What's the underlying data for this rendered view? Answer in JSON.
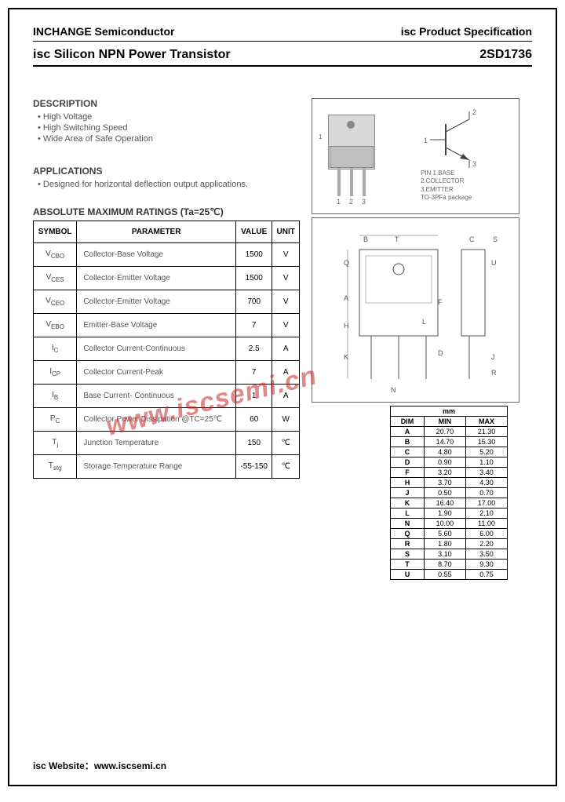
{
  "header": {
    "company": "INCHANGE Semiconductor",
    "spec": "isc Product Specification"
  },
  "title": {
    "product": "isc Silicon NPN Power Transistor",
    "partnum": "2SD1736"
  },
  "description": {
    "title": "DESCRIPTION",
    "bullets": [
      "High Voltage",
      "High Switching Speed",
      "Wide Area of Safe Operation"
    ]
  },
  "applications": {
    "title": "APPLICATIONS",
    "bullets": [
      "Designed for horizontal deflection output applications."
    ]
  },
  "ratings": {
    "title": "ABSOLUTE MAXIMUM RATINGS (Ta=25℃)",
    "headers": [
      "SYMBOL",
      "PARAMETER",
      "VALUE",
      "UNIT"
    ],
    "rows": [
      {
        "sym": "V",
        "sub": "CBO",
        "param": "Collector-Base Voltage",
        "value": "1500",
        "unit": "V"
      },
      {
        "sym": "V",
        "sub": "CES",
        "param": "Collector-Emitter Voltage",
        "value": "1500",
        "unit": "V"
      },
      {
        "sym": "V",
        "sub": "CEO",
        "param": "Collector-Emitter Voltage",
        "value": "700",
        "unit": "V"
      },
      {
        "sym": "V",
        "sub": "EBO",
        "param": "Emitter-Base Voltage",
        "value": "7",
        "unit": "V"
      },
      {
        "sym": "I",
        "sub": "C",
        "param": "Collector Current-Continuous",
        "value": "2.5",
        "unit": "A"
      },
      {
        "sym": "I",
        "sub": "CP",
        "param": "Collector Current-Peak",
        "value": "7",
        "unit": "A"
      },
      {
        "sym": "I",
        "sub": "B",
        "param": "Base Current- Continuous",
        "value": "1",
        "unit": "A"
      },
      {
        "sym": "P",
        "sub": "C",
        "param": "Collector Power Dissipation @TC=25℃",
        "value": "60",
        "unit": "W"
      },
      {
        "sym": "T",
        "sub": "j",
        "param": "Junction Temperature",
        "value": "150",
        "unit": "℃"
      },
      {
        "sym": "T",
        "sub": "stg",
        "param": "Storage Temperature Range",
        "value": "-55-150",
        "unit": "℃"
      }
    ]
  },
  "package": {
    "pins": [
      "1",
      "2",
      "3"
    ],
    "pinlabels": "PIN 1.BASE\n2.COLLECTOR\n3.EMITTER\nTO-3PFa package",
    "symbol_pins": {
      "p1": "1",
      "p2": "2",
      "p3": "3"
    }
  },
  "dimensions": {
    "header_unit": "mm",
    "headers": [
      "DIM",
      "MIN",
      "MAX"
    ],
    "rows": [
      [
        "A",
        "20.70",
        "21.30"
      ],
      [
        "B",
        "14.70",
        "15.30"
      ],
      [
        "C",
        "4.80",
        "5.20"
      ],
      [
        "D",
        "0.90",
        "1.10"
      ],
      [
        "F",
        "3.20",
        "3.40"
      ],
      [
        "H",
        "3.70",
        "4.30"
      ],
      [
        "J",
        "0.50",
        "0.70"
      ],
      [
        "K",
        "16.40",
        "17.00"
      ],
      [
        "L",
        "1.90",
        "2.10"
      ],
      [
        "N",
        "10.00",
        "11.00"
      ],
      [
        "Q",
        "5.60",
        "6.00"
      ],
      [
        "R",
        "1.80",
        "2.20"
      ],
      [
        "S",
        "3.10",
        "3.50"
      ],
      [
        "T",
        "8.70",
        "9.30"
      ],
      [
        "U",
        "0.55",
        "0.75"
      ]
    ],
    "drawing_labels": [
      "A",
      "B",
      "C",
      "D",
      "F",
      "H",
      "J",
      "K",
      "L",
      "N",
      "Q",
      "R",
      "S",
      "T",
      "U"
    ]
  },
  "watermark": "www.iscsemi.cn",
  "footer": {
    "label": "isc Website：",
    "url": "www.iscsemi.cn"
  }
}
